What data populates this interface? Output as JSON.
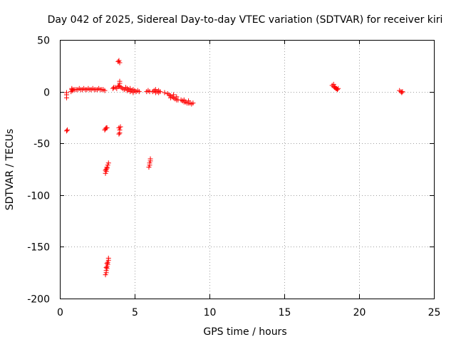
{
  "chart_data": {
    "type": "scatter",
    "title": "Day 042 of 2025, Sidereal Day-to-day VTEC variation (SDTVAR) for receiver kiri",
    "xlabel": "GPS time / hours",
    "ylabel": "SDTVAR / TECUs",
    "xlim": [
      0,
      25
    ],
    "ylim": [
      -200,
      50
    ],
    "xticks": [
      0,
      5,
      10,
      15,
      20,
      25
    ],
    "yticks": [
      50,
      0,
      -50,
      -100,
      -150,
      -200
    ],
    "grid": true,
    "marker": "+",
    "color": "#ff0000",
    "series": [
      {
        "name": "SDTVAR",
        "points": [
          [
            0.45,
            -1
          ],
          [
            0.45,
            -3
          ],
          [
            0.45,
            -6
          ],
          [
            0.5,
            -37
          ],
          [
            0.45,
            -38
          ],
          [
            0.75,
            0
          ],
          [
            0.8,
            2
          ],
          [
            0.8,
            3
          ],
          [
            0.85,
            1
          ],
          [
            0.9,
            2
          ],
          [
            1.0,
            2
          ],
          [
            1.1,
            2
          ],
          [
            1.2,
            2
          ],
          [
            1.3,
            3
          ],
          [
            1.4,
            2
          ],
          [
            1.5,
            2
          ],
          [
            1.6,
            3
          ],
          [
            1.7,
            2
          ],
          [
            1.8,
            2
          ],
          [
            1.9,
            3
          ],
          [
            2.0,
            2
          ],
          [
            2.1,
            2
          ],
          [
            2.2,
            3
          ],
          [
            2.3,
            2
          ],
          [
            2.4,
            2
          ],
          [
            2.5,
            2
          ],
          [
            2.6,
            3
          ],
          [
            2.7,
            2
          ],
          [
            2.8,
            2
          ],
          [
            2.9,
            2
          ],
          [
            3.0,
            1
          ],
          [
            3.0,
            -37
          ],
          [
            3.05,
            -36
          ],
          [
            3.1,
            -35
          ],
          [
            3.15,
            -35
          ],
          [
            3.05,
            -79
          ],
          [
            3.1,
            -77
          ],
          [
            3.1,
            -75
          ],
          [
            3.15,
            -73
          ],
          [
            3.2,
            -71
          ],
          [
            3.25,
            -69
          ],
          [
            3.05,
            -76
          ],
          [
            3.15,
            -74
          ],
          [
            3.05,
            -177
          ],
          [
            3.1,
            -175
          ],
          [
            3.1,
            -173
          ],
          [
            3.15,
            -171
          ],
          [
            3.15,
            -169
          ],
          [
            3.2,
            -167
          ],
          [
            3.2,
            -165
          ],
          [
            3.25,
            -163
          ],
          [
            3.25,
            -161
          ],
          [
            3.1,
            -170
          ],
          [
            3.15,
            -166
          ],
          [
            3.55,
            3
          ],
          [
            3.6,
            4
          ],
          [
            3.7,
            4
          ],
          [
            3.8,
            3
          ],
          [
            3.9,
            5
          ],
          [
            3.95,
            6
          ],
          [
            4.0,
            5
          ],
          [
            4.0,
            10
          ],
          [
            4.0,
            8
          ],
          [
            3.9,
            29
          ],
          [
            4.0,
            28
          ],
          [
            3.95,
            30
          ],
          [
            3.95,
            -35
          ],
          [
            4.0,
            -37
          ],
          [
            4.0,
            -40
          ],
          [
            3.95,
            -41
          ],
          [
            4.05,
            -34
          ],
          [
            4.1,
            4
          ],
          [
            4.2,
            3
          ],
          [
            4.3,
            2
          ],
          [
            4.4,
            4
          ],
          [
            4.5,
            3
          ],
          [
            4.6,
            2
          ],
          [
            4.7,
            3
          ],
          [
            4.8,
            1
          ],
          [
            4.9,
            2
          ],
          [
            5.0,
            1
          ],
          [
            5.1,
            0
          ],
          [
            5.2,
            1
          ],
          [
            5.3,
            0
          ],
          [
            4.5,
            1
          ],
          [
            4.7,
            0
          ],
          [
            4.9,
            -1
          ],
          [
            5.8,
            0
          ],
          [
            5.9,
            1
          ],
          [
            6.0,
            0
          ],
          [
            5.95,
            -73
          ],
          [
            6.0,
            -71
          ],
          [
            6.0,
            -69
          ],
          [
            6.05,
            -67
          ],
          [
            6.05,
            -65
          ],
          [
            6.2,
            0
          ],
          [
            6.3,
            1
          ],
          [
            6.4,
            -1
          ],
          [
            6.5,
            0
          ],
          [
            6.6,
            1
          ],
          [
            6.7,
            0
          ],
          [
            6.4,
            2
          ],
          [
            6.6,
            -1
          ],
          [
            7.0,
            -1
          ],
          [
            7.2,
            -2
          ],
          [
            7.3,
            -3
          ],
          [
            7.4,
            -4
          ],
          [
            7.5,
            -5
          ],
          [
            7.6,
            -6
          ],
          [
            7.7,
            -7
          ],
          [
            7.8,
            -8
          ],
          [
            7.9,
            -8
          ],
          [
            7.4,
            -6
          ],
          [
            7.6,
            -3
          ],
          [
            7.8,
            -5
          ],
          [
            8.1,
            -8
          ],
          [
            8.2,
            -9
          ],
          [
            8.3,
            -10
          ],
          [
            8.4,
            -10
          ],
          [
            8.5,
            -11
          ],
          [
            8.6,
            -11
          ],
          [
            8.7,
            -11
          ],
          [
            8.8,
            -12
          ],
          [
            8.9,
            -11
          ],
          [
            8.3,
            -8
          ],
          [
            8.6,
            -9
          ],
          [
            18.2,
            6
          ],
          [
            18.3,
            5
          ],
          [
            18.35,
            4
          ],
          [
            18.4,
            4
          ],
          [
            18.45,
            3
          ],
          [
            18.5,
            3
          ],
          [
            18.55,
            2
          ],
          [
            18.6,
            3
          ],
          [
            18.3,
            7
          ],
          [
            22.7,
            1
          ],
          [
            22.8,
            0
          ],
          [
            22.85,
            -1
          ],
          [
            22.9,
            0
          ]
        ]
      }
    ]
  }
}
